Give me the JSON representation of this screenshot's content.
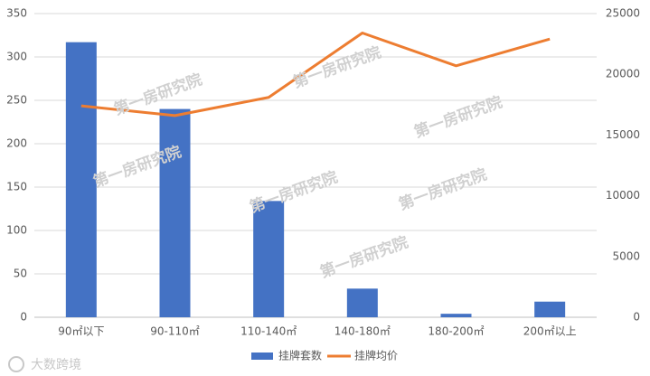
{
  "chart_data": {
    "type": "bar-line",
    "categories": [
      "90㎡以下",
      "90-110㎡",
      "110-140㎡",
      "140-180㎡",
      "180-200㎡",
      "200㎡以上"
    ],
    "series": [
      {
        "name": "挂牌套数",
        "type": "bar",
        "color": "#4472c4",
        "values": [
          317,
          240,
          134,
          33,
          4,
          18
        ]
      },
      {
        "name": "挂牌均价",
        "type": "line",
        "color": "#ed7d31",
        "axis": "y2",
        "values": [
          17400,
          16600,
          18100,
          23400,
          20700,
          22900
        ]
      }
    ],
    "ylim": [
      0,
      350
    ],
    "yticks": [
      0,
      50,
      100,
      150,
      200,
      250,
      300,
      350
    ],
    "y2lim": [
      0,
      25000
    ],
    "y2ticks": [
      0,
      5000,
      10000,
      15000,
      20000,
      25000
    ],
    "grid": true,
    "legend": "bottom",
    "watermarks": [
      "第一房研究院",
      "第一房研究院",
      "第一房研究院",
      "第一房研究院",
      "第一房研究院",
      "第一房研究院",
      "第一房研究院"
    ],
    "source_mark": "大数跨境"
  }
}
